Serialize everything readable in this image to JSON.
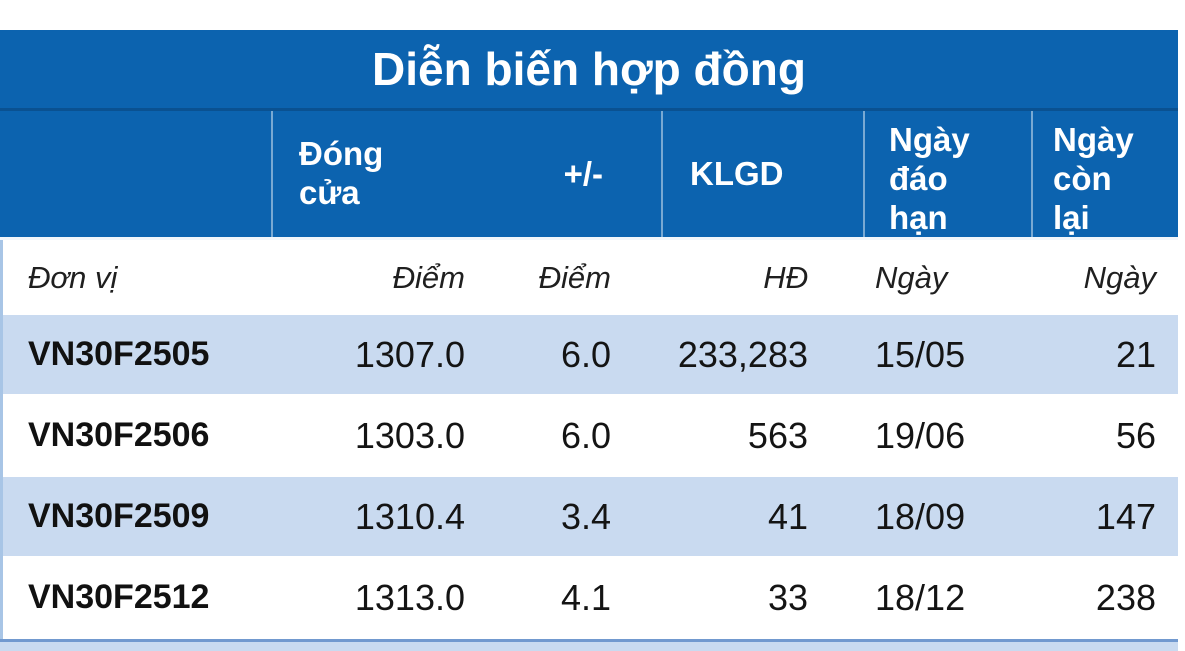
{
  "chart_data": {
    "type": "table",
    "title": "Diễn biến hợp đồng",
    "columns": [
      "",
      "Đóng cửa",
      "+/-",
      "KLGD",
      "Ngày đáo hạn",
      "Ngày còn lại"
    ],
    "unit_row": [
      "Đơn vị",
      "Điểm",
      "Điểm",
      "HĐ",
      "Ngày",
      "Ngày"
    ],
    "rows": [
      [
        "VN30F2505",
        "1307.0",
        "6.0",
        "233,283",
        "15/05",
        "21"
      ],
      [
        "VN30F2506",
        "1303.0",
        "6.0",
        "563",
        "19/06",
        "56"
      ],
      [
        "VN30F2509",
        "1310.4",
        "3.4",
        "41",
        "18/09",
        "147"
      ],
      [
        "VN30F2512",
        "1313.0",
        "4.1",
        "33",
        "18/12",
        "238"
      ]
    ],
    "layout_hints": {
      "zebra_rows": [
        0,
        2
      ],
      "numeric_columns_right_aligned": true
    }
  },
  "colors": {
    "header_bg": "#0c63af",
    "header_divider": "#0a5191",
    "header_text": "#ffffff",
    "zebra_row_bg": "#c9daf0",
    "side_border": "#a8c5e6",
    "bottom_border": "#7199cf",
    "body_text": "#141414"
  }
}
